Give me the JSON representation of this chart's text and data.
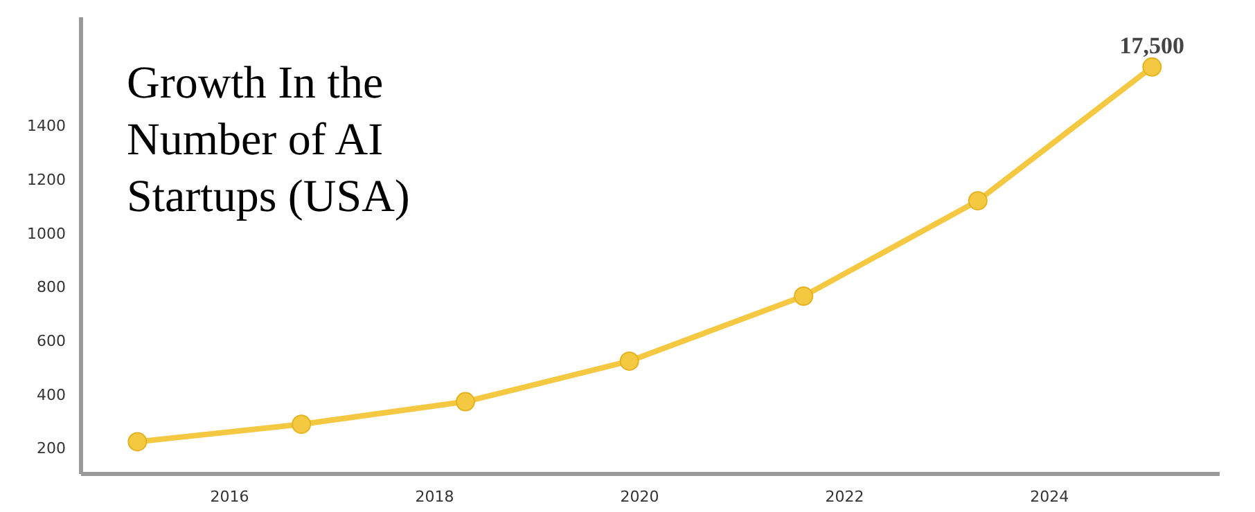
{
  "chart_data": {
    "type": "line",
    "title": "Growth In the Number of AI Startups (USA)",
    "x": [
      2015.1,
      2016.7,
      2018.3,
      2019.9,
      2021.6,
      2023.3,
      2025.0
    ],
    "series": [
      {
        "color": "#f5c842",
        "values": [
          220,
          285,
          369,
          520,
          762,
          1117,
          1615
        ]
      }
    ],
    "xlim": [
      2014.55,
      2025.66
    ],
    "ylim": [
      100,
      1800
    ],
    "xticks": [
      2016,
      2018,
      2020,
      2022,
      2024
    ],
    "yticks": [
      200,
      400,
      600,
      800,
      1000,
      1200,
      1400
    ],
    "annotations": [
      {
        "text": "17,500",
        "x": 2025.0,
        "y": 1615
      }
    ],
    "grid": false,
    "marker": "circle",
    "line_style": "solid"
  }
}
